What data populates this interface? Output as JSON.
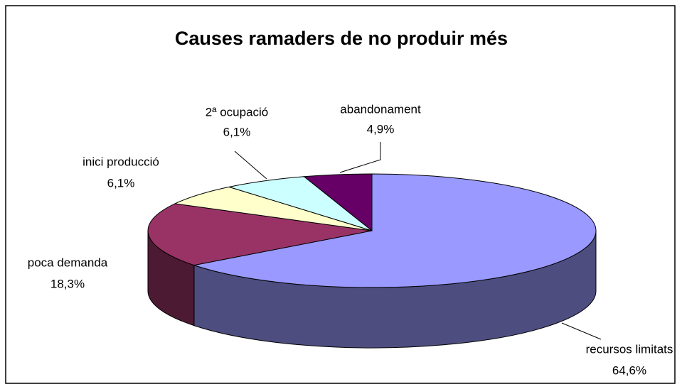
{
  "chart_data": {
    "type": "pie3d",
    "title": "Causes ramaders de no produir més",
    "categories": [
      "recursos limitats",
      "poca demanda",
      "inici producció",
      "2ª ocupació",
      "abandonament"
    ],
    "values": [
      64.6,
      18.3,
      6.1,
      6.1,
      4.9
    ],
    "value_labels": [
      "64,6%",
      "18,3%",
      "6,1%",
      "6,1%",
      "4,9%"
    ],
    "colors": [
      "#9999ff",
      "#993366",
      "#ffffcc",
      "#ccffff",
      "#660066"
    ]
  }
}
